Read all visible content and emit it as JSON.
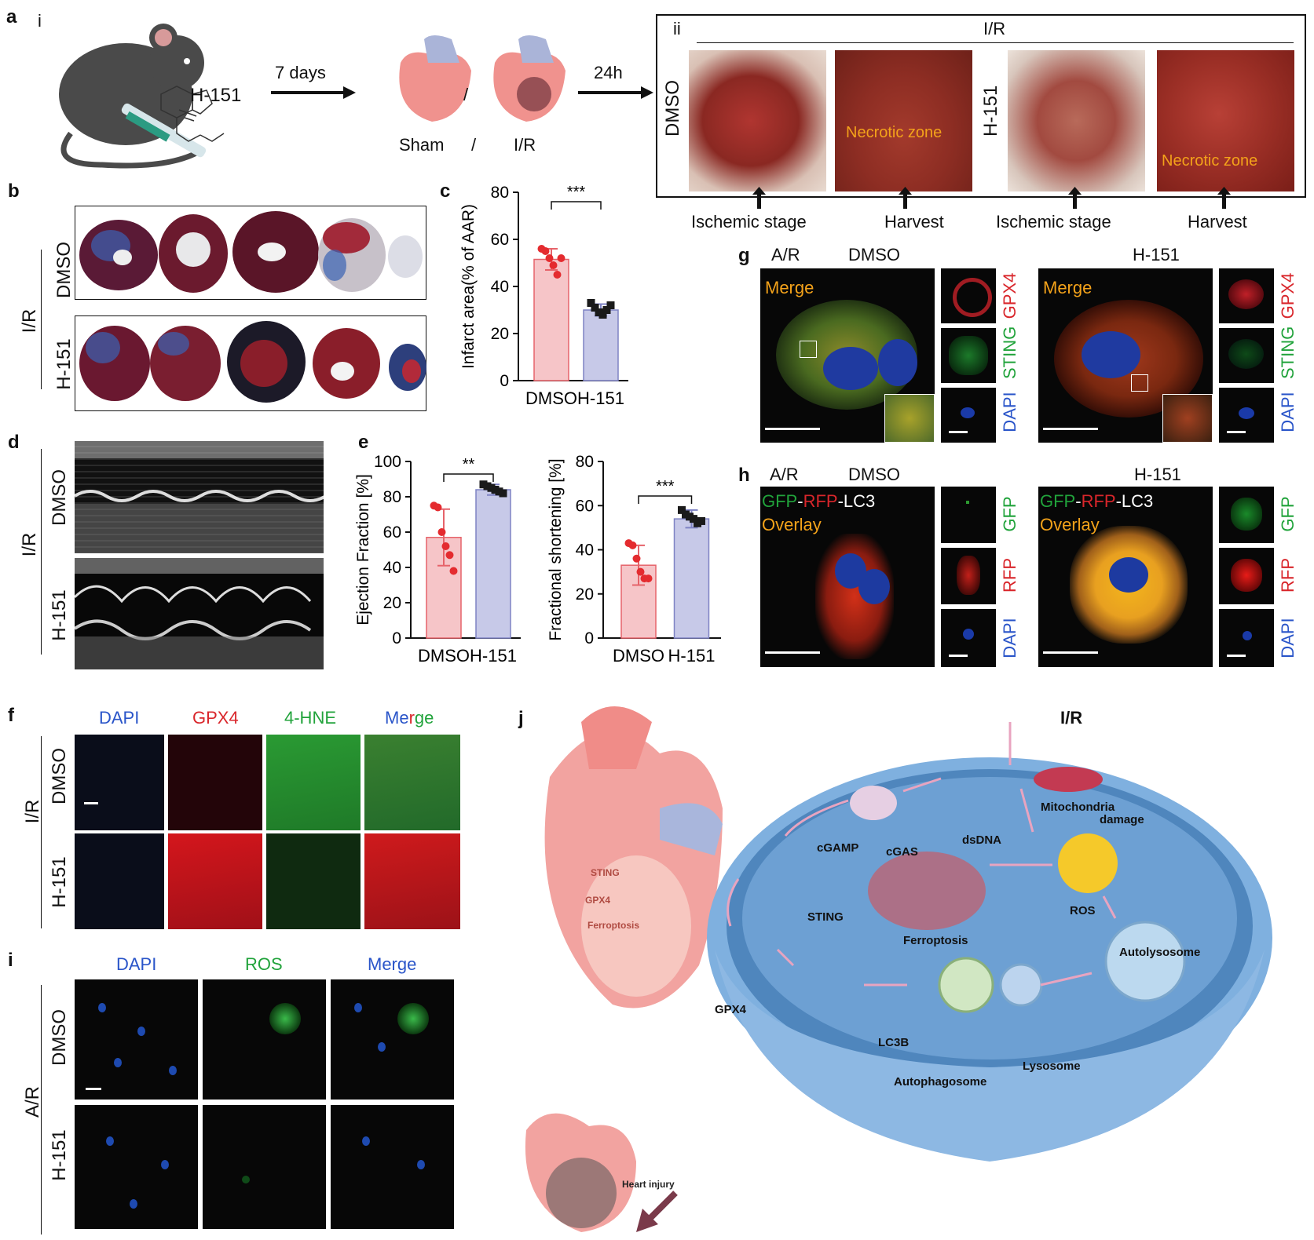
{
  "panel_letters": {
    "a": "a",
    "b": "b",
    "c": "c",
    "d": "d",
    "e": "e",
    "f": "f",
    "g": "g",
    "h": "h",
    "i": "i",
    "j": "j"
  },
  "panel_a": {
    "sub_i": "i",
    "sub_ii": "ii",
    "compound": "H-151",
    "step1": "7 days",
    "step2": "24h",
    "sham": "Sham",
    "slash": "/",
    "ir": "I/R",
    "box_title": "I/R",
    "dmso": "DMSO",
    "h151": "H-151",
    "necrotic": "Necrotic zone",
    "stages": [
      "Ischemic  stage",
      "Harvest",
      "Ischemic  stage",
      "Harvest"
    ]
  },
  "panel_b": {
    "ir": "I/R",
    "dmso": "DMSO",
    "h151": "H-151"
  },
  "panel_d": {
    "ir": "I/R",
    "dmso": "DMSO",
    "h151": "H-151"
  },
  "panel_f": {
    "cols": [
      "DAPI",
      "GPX4",
      "4-HNE",
      "Merge"
    ],
    "merge_parts": [
      "Me",
      "r",
      "ge"
    ],
    "ir": "I/R",
    "dmso": "DMSO",
    "h151": "H-151"
  },
  "panel_g": {
    "ar": "A/R",
    "dmso": "DMSO",
    "h151": "H-151",
    "merge": "Merge",
    "ch": [
      "GPX4",
      "STING",
      "DAPI"
    ]
  },
  "panel_h": {
    "ar": "A/R",
    "dmso": "DMSO",
    "h151": "H-151",
    "gfp": "GFP",
    "dash": "-",
    "rfp": "RFP",
    "lc3": "-LC3",
    "overlay": "Overlay",
    "ch": [
      "GFP",
      "RFP",
      "DAPI"
    ]
  },
  "panel_i": {
    "cols": [
      "DAPI",
      "ROS",
      "Merge"
    ],
    "ar": "A/R",
    "dmso": "DMSO",
    "h151": "H-151"
  },
  "panel_j": {
    "ir": "I/R",
    "mito": "Mitochondria",
    "damage": "damage",
    "dsdna": "dsDNA",
    "cgamp": "cGAMP",
    "cgas": "cGAS",
    "sting": "STING",
    "ros": "ROS",
    "ferroptosis": "Ferroptosis",
    "autolysosome": "Autolysosome",
    "gpx4": "GPX4",
    "lc3b": "LC3B",
    "lysosome": "Lysosome",
    "autophagosome": "Autophagosome",
    "heart_sting": "STING",
    "heart_gpx4": "GPX4",
    "heart_ferro": "Ferroptosis",
    "heart_injury": "Heart injury"
  },
  "colors": {
    "dmso_bar": "#f6c5c8",
    "h151_bar": "#c7c9e8",
    "dmso_point": "#e42b2f",
    "h151_point": "#1a1a1a",
    "cell_membrane": "#6fa3d8"
  },
  "chart_data": [
    {
      "type": "bar",
      "panel": "c",
      "categories": [
        "DMSO",
        "H-151"
      ],
      "values": [
        51.5,
        30
      ],
      "errors": [
        4.5,
        2.5
      ],
      "points": [
        [
          56,
          55,
          52,
          49,
          45,
          52
        ],
        [
          33,
          31,
          29,
          28,
          30,
          32
        ]
      ],
      "ylabel": "Infarct area(% of AAR)",
      "ylim": [
        0,
        80
      ],
      "yticks": [
        0,
        20,
        40,
        60,
        80
      ],
      "significance": "***"
    },
    {
      "type": "bar",
      "panel": "e-left",
      "categories": [
        "DMSO",
        "H-151"
      ],
      "values": [
        57,
        84
      ],
      "errors": [
        16,
        3
      ],
      "points": [
        [
          75,
          74,
          60,
          52,
          47,
          38
        ],
        [
          87,
          86,
          85,
          84,
          83,
          82
        ]
      ],
      "ylabel": "Ejection Fraction [%]",
      "ylim": [
        0,
        100
      ],
      "yticks": [
        0,
        20,
        40,
        60,
        80,
        100
      ],
      "significance": "**"
    },
    {
      "type": "bar",
      "panel": "e-right",
      "categories": [
        "DMSO",
        "H-151"
      ],
      "values": [
        33,
        54
      ],
      "errors": [
        9,
        4
      ],
      "points": [
        [
          43,
          42,
          36,
          30,
          27,
          27
        ],
        [
          58,
          56,
          55,
          54,
          52,
          53
        ]
      ],
      "ylabel": "Fractional shortening [%]",
      "ylim": [
        0,
        80
      ],
      "yticks": [
        0,
        20,
        40,
        60,
        80
      ],
      "significance": "***"
    }
  ]
}
